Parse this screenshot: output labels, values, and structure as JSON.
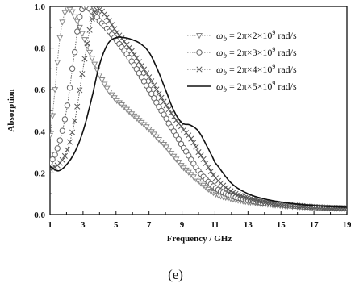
{
  "chart_data": {
    "type": "line",
    "xlabel": "Frequency / GHz",
    "ylabel": "Absorption",
    "xlim": [
      1,
      19
    ],
    "ylim": [
      0.0,
      1.0
    ],
    "x_ticks": [
      "1",
      "3",
      "5",
      "7",
      "9",
      "11",
      "13",
      "15",
      "17",
      "19"
    ],
    "y_ticks": [
      "0.0",
      "0.2",
      "0.4",
      "0.6",
      "0.8",
      "1.0"
    ],
    "legend_position": "top-right",
    "series": [
      {
        "name_prefix": "ω",
        "name_sub": "b",
        "name_mid": " = 2π×2×10",
        "name_sup": "9",
        "name_suffix": " rad/s",
        "marker": "triangle-down",
        "dash": "dotted",
        "color": "#888888",
        "x": [
          1,
          1.3,
          1.6,
          1.9,
          2.2,
          2.5,
          3,
          3.5,
          4,
          4.5,
          5,
          6,
          7,
          8,
          8.5,
          9,
          10,
          11,
          12,
          13,
          14,
          15,
          16,
          17,
          18,
          19
        ],
        "y": [
          0.38,
          0.6,
          0.85,
          0.97,
          0.985,
          0.95,
          0.86,
          0.76,
          0.67,
          0.6,
          0.55,
          0.48,
          0.41,
          0.33,
          0.28,
          0.23,
          0.16,
          0.1,
          0.075,
          0.06,
          0.05,
          0.042,
          0.037,
          0.033,
          0.03,
          0.028
        ]
      },
      {
        "name_prefix": "ω",
        "name_sub": "b",
        "name_mid": " = 2π×3×10",
        "name_sup": "9",
        "name_suffix": " rad/s",
        "marker": "circle",
        "dash": "dotted",
        "color": "#666666",
        "x": [
          1,
          1.5,
          2,
          2.5,
          2.8,
          3.1,
          3.5,
          4,
          5,
          6,
          7,
          8,
          8.5,
          9,
          10,
          11,
          12,
          13,
          14,
          15,
          16,
          17,
          18,
          19
        ],
        "y": [
          0.25,
          0.33,
          0.5,
          0.78,
          0.95,
          1.0,
          0.98,
          0.93,
          0.84,
          0.73,
          0.6,
          0.47,
          0.4,
          0.33,
          0.21,
          0.13,
          0.09,
          0.07,
          0.055,
          0.047,
          0.04,
          0.035,
          0.032,
          0.03
        ]
      },
      {
        "name_prefix": "ω",
        "name_sub": "b",
        "name_mid": " = 2π×4×10",
        "name_sup": "9",
        "name_suffix": " rad/s",
        "marker": "x",
        "dash": "dotted",
        "color": "#555555",
        "x": [
          1,
          1.5,
          2,
          2.5,
          3,
          3.5,
          3.8,
          4.2,
          5,
          6,
          7,
          8,
          9,
          9.5,
          10,
          11,
          12,
          13,
          14,
          15,
          16,
          17,
          18,
          19
        ],
        "y": [
          0.22,
          0.24,
          0.3,
          0.45,
          0.7,
          0.92,
          0.98,
          0.97,
          0.88,
          0.78,
          0.66,
          0.53,
          0.42,
          0.37,
          0.3,
          0.18,
          0.11,
          0.08,
          0.06,
          0.05,
          0.043,
          0.037,
          0.033,
          0.03
        ]
      },
      {
        "name_prefix": "ω",
        "name_sub": "b",
        "name_mid": " = 2π×5×10",
        "name_sup": "9",
        "name_suffix": " rad/s",
        "marker": "none",
        "dash": "solid",
        "color": "#111111",
        "x": [
          1,
          1.5,
          2,
          2.5,
          3,
          3.5,
          4,
          4.5,
          5,
          5.5,
          6,
          6.5,
          7,
          7.5,
          8,
          8.5,
          9,
          9.5,
          10,
          10.5,
          11,
          12,
          13,
          14,
          15,
          16,
          17,
          18,
          19
        ],
        "y": [
          0.23,
          0.21,
          0.24,
          0.3,
          0.4,
          0.55,
          0.72,
          0.82,
          0.85,
          0.85,
          0.84,
          0.82,
          0.78,
          0.7,
          0.6,
          0.5,
          0.44,
          0.43,
          0.4,
          0.33,
          0.25,
          0.15,
          0.1,
          0.075,
          0.06,
          0.05,
          0.043,
          0.038,
          0.035
        ]
      }
    ],
    "panel_label": "(e)"
  }
}
